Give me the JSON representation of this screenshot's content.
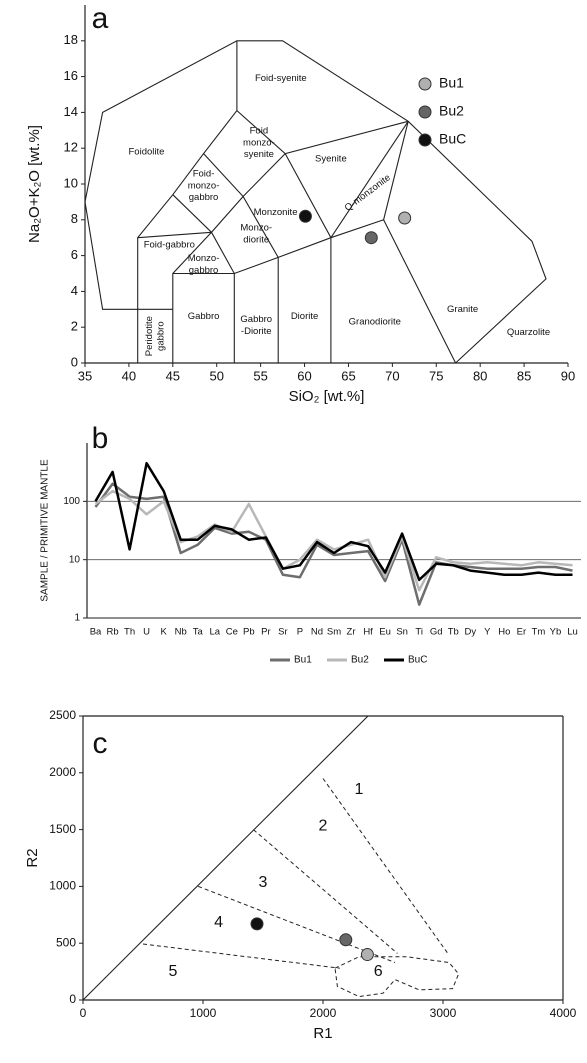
{
  "chart_data": [
    {
      "type": "scatter",
      "panel_label": "a",
      "xlabel": "SiO₂ [wt.%]",
      "ylabel": "Na₂O+K₂O [wt.%]",
      "xlim": [
        35,
        90
      ],
      "ylim": [
        0,
        20
      ],
      "xticks": [
        35,
        40,
        45,
        50,
        55,
        60,
        65,
        70,
        75,
        80,
        85,
        90
      ],
      "yticks": [
        0,
        2,
        4,
        6,
        8,
        10,
        12,
        14,
        16,
        18
      ],
      "legend": "right",
      "series": [
        {
          "name": "Bu1",
          "color": "#b0b0b0",
          "x": [
            71.4
          ],
          "y": [
            8.1
          ]
        },
        {
          "name": "Bu2",
          "color": "#666666",
          "x": [
            67.6
          ],
          "y": [
            7.0
          ]
        },
        {
          "name": "BuC",
          "color": "#111111",
          "x": [
            60.1
          ],
          "y": [
            8.2
          ]
        }
      ],
      "field_labels": [
        [
          "Foid-syenite"
        ],
        [
          "Foidolite"
        ],
        [
          "Foid",
          "monzo-",
          "syenite"
        ],
        [
          "Syenite"
        ],
        [
          "Foid-",
          "monzo-",
          "gabbro"
        ],
        [
          "Monzonite"
        ],
        [
          "Q-monzonite"
        ],
        [
          "Foid-gabbro"
        ],
        [
          "Monzo-",
          "diorite"
        ],
        [
          "Monzo-",
          "gabbro"
        ],
        [
          "Peridotite",
          "gabbro"
        ],
        [
          "Gabbro"
        ],
        [
          "Gabbro",
          "-Diorite"
        ],
        [
          "Diorite"
        ],
        [
          "Granodiorite"
        ],
        [
          "Granite"
        ],
        [
          "Quarzolite"
        ]
      ]
    },
    {
      "type": "line",
      "panel_label": "b",
      "ylabel": "SAMPLE / PRIMITIVE MANTLE",
      "log_scale": true,
      "ylim": [
        1,
        1000
      ],
      "yticks": [
        1,
        10,
        100
      ],
      "grid": true,
      "legend": "bottom",
      "categories": [
        "Ba",
        "Rb",
        "Th",
        "U",
        "K",
        "Nb",
        "Ta",
        "La",
        "Ce",
        "Pb",
        "Pr",
        "Sr",
        "P",
        "Nd",
        "Sm",
        "Zr",
        "Hf",
        "Eu",
        "Sn",
        "Ti",
        "Gd",
        "Tb",
        "Dy",
        "Y",
        "Ho",
        "Er",
        "Tm",
        "Yb",
        "Lu"
      ],
      "series": [
        {
          "name": "Bu1",
          "color": "#6e6e6e",
          "values": [
            80,
            200,
            120,
            110,
            120,
            13,
            18,
            35,
            28,
            30,
            22,
            5.5,
            5,
            18,
            12,
            13,
            14,
            4.3,
            22,
            1.7,
            9,
            8,
            7.5,
            7,
            7,
            7,
            7.5,
            7.5,
            6.5
          ]
        },
        {
          "name": "Bu2",
          "color": "#b8b8b8",
          "values": [
            90,
            150,
            110,
            60,
            100,
            20,
            25,
            40,
            30,
            90,
            25,
            7,
            10,
            22,
            15,
            18,
            22,
            5,
            25,
            3,
            11,
            9,
            8.5,
            9,
            8.5,
            8,
            9,
            8.5,
            8
          ]
        },
        {
          "name": "BuC",
          "color": "#000000",
          "values": [
            100,
            320,
            15,
            450,
            150,
            22,
            22,
            38,
            33,
            22,
            24,
            7,
            8,
            20,
            13,
            20,
            17,
            6,
            28,
            4.5,
            8.5,
            8,
            6.5,
            6,
            5.5,
            5.5,
            6,
            5.5,
            5.5
          ]
        }
      ]
    },
    {
      "type": "scatter",
      "panel_label": "c",
      "xlabel": "R1",
      "ylabel": "R2",
      "xlim": [
        0,
        4000
      ],
      "ylim": [
        0,
        2500
      ],
      "xticks": [
        0,
        1000,
        2000,
        3000,
        4000
      ],
      "yticks": [
        0,
        500,
        1000,
        1500,
        2000,
        2500
      ],
      "series": [
        {
          "color": "#b0b0b0",
          "x": [
            2370
          ],
          "y": [
            400
          ]
        },
        {
          "color": "#666666",
          "x": [
            2190
          ],
          "y": [
            530
          ]
        },
        {
          "color": "#111111",
          "x": [
            1450
          ],
          "y": [
            670
          ]
        }
      ],
      "field_labels": [
        [
          "1"
        ],
        [
          "2"
        ],
        [
          "3"
        ],
        [
          "4"
        ],
        [
          "5"
        ],
        [
          "6"
        ]
      ]
    }
  ]
}
